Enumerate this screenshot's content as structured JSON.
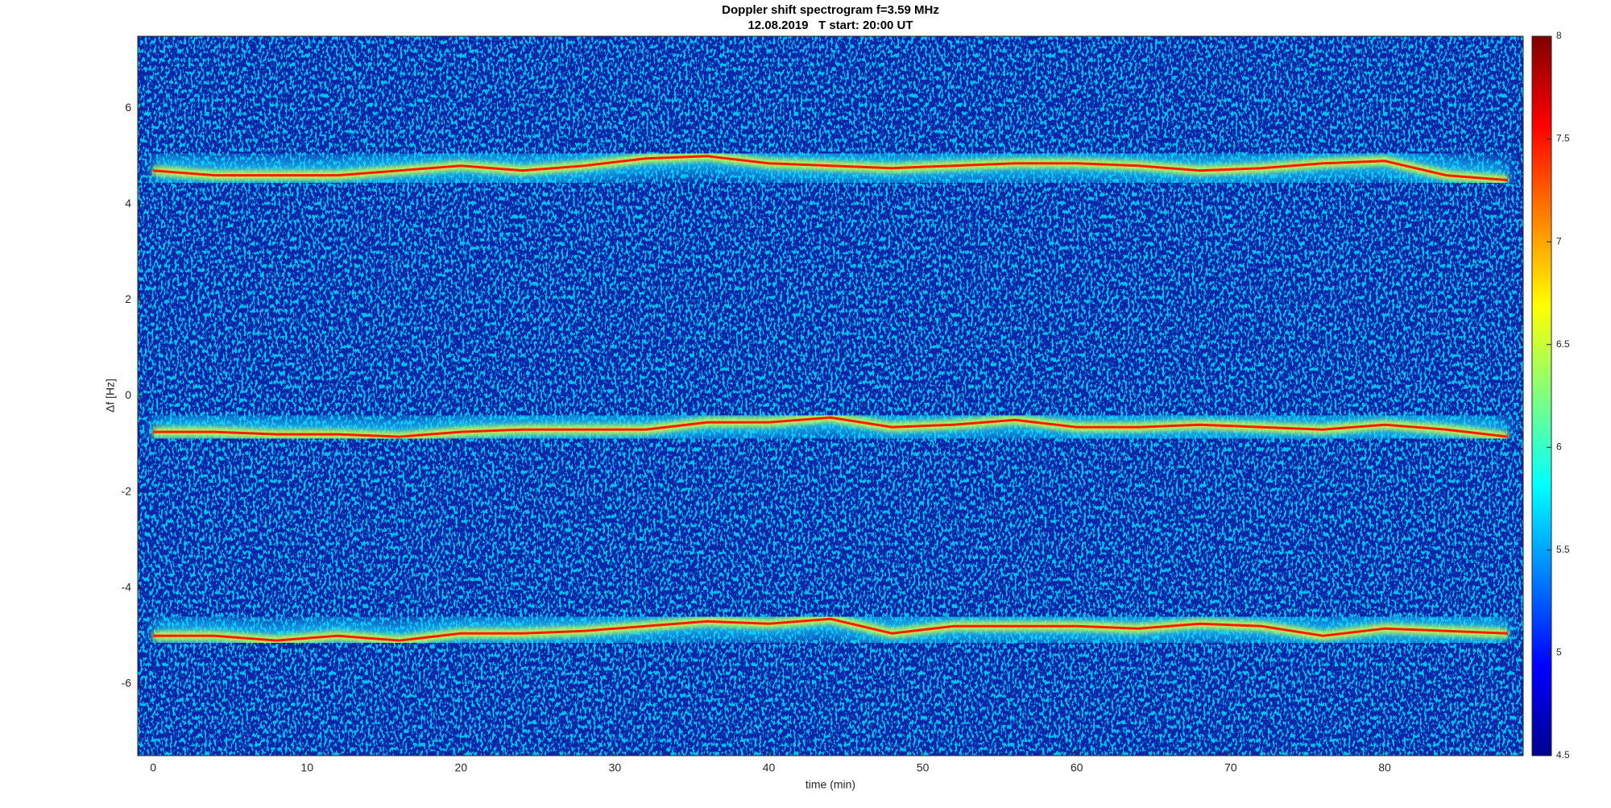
{
  "chart_data": {
    "type": "spectrogram",
    "title": "Doppler shift spectrogram f=3.59 MHz",
    "subtitle": "12.08.2019   T start: 20:00 UT",
    "x_label": "time (min)",
    "y_label": "Δf [Hz]",
    "xlim": [
      -1,
      89
    ],
    "ylim": [
      -7.5,
      7.5
    ],
    "xticks": [
      0,
      10,
      20,
      30,
      40,
      50,
      60,
      70,
      80
    ],
    "yticks": [
      -6,
      -4,
      -2,
      0,
      2,
      4,
      6
    ],
    "colorbar_lim": [
      4.5,
      8
    ],
    "colorbar_ticks": [
      4.5,
      5,
      5.5,
      6,
      6.5,
      7,
      7.5,
      8
    ],
    "x": [
      0,
      4,
      8,
      12,
      16,
      20,
      24,
      28,
      32,
      36,
      40,
      44,
      48,
      52,
      56,
      60,
      64,
      68,
      72,
      76,
      80,
      84,
      88
    ],
    "series": [
      {
        "color": "#ff1a00",
        "values": [
          4.7,
          4.6,
          4.6,
          4.6,
          4.7,
          4.8,
          4.7,
          4.8,
          4.95,
          5.0,
          4.85,
          4.8,
          4.75,
          4.8,
          4.85,
          4.85,
          4.8,
          4.7,
          4.75,
          4.85,
          4.9,
          4.6,
          4.5
        ]
      },
      {
        "color": "#ff1a00",
        "values": [
          -0.75,
          -0.75,
          -0.8,
          -0.8,
          -0.85,
          -0.75,
          -0.7,
          -0.7,
          -0.7,
          -0.55,
          -0.55,
          -0.45,
          -0.65,
          -0.6,
          -0.5,
          -0.65,
          -0.65,
          -0.6,
          -0.65,
          -0.7,
          -0.6,
          -0.7,
          -0.85
        ]
      },
      {
        "color": "#ff1a00",
        "values": [
          -5.0,
          -5.0,
          -5.1,
          -5.0,
          -5.1,
          -4.95,
          -4.95,
          -4.9,
          -4.8,
          -4.7,
          -4.75,
          -4.65,
          -4.95,
          -4.8,
          -4.8,
          -4.8,
          -4.85,
          -4.75,
          -4.8,
          -5.0,
          -4.85,
          -4.9,
          -4.95
        ]
      }
    ]
  }
}
